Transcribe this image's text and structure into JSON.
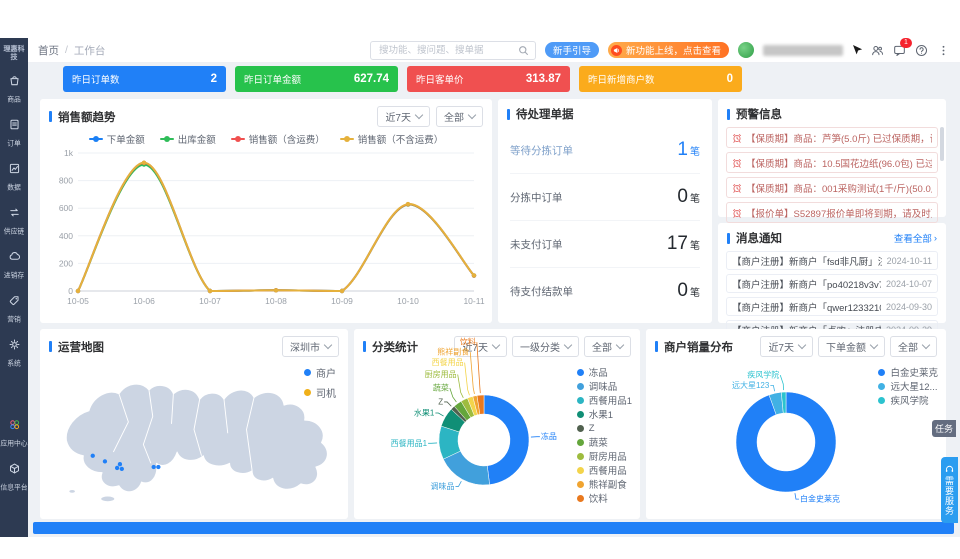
{
  "brand": {
    "logo_text": "理惠科技"
  },
  "sidebar": {
    "items": [
      {
        "icon": "goods-icon",
        "label": "商品"
      },
      {
        "icon": "orders-icon",
        "label": "订单"
      },
      {
        "icon": "data-icon",
        "label": "数据"
      },
      {
        "icon": "supply-chain-icon",
        "label": "供应链"
      },
      {
        "icon": "inventory-icon",
        "label": "进销存"
      },
      {
        "icon": "marketing-icon",
        "label": "营销"
      },
      {
        "icon": "system-icon",
        "label": "系统"
      }
    ],
    "bottom_items": [
      {
        "icon": "app-center-icon",
        "label": "应用中心"
      },
      {
        "icon": "info-platform-icon",
        "label": "信息平台"
      }
    ]
  },
  "header": {
    "breadcrumb": [
      "首页",
      "工作台"
    ],
    "search_placeholder": "搜功能、搜问题、搜单据",
    "guide_button": "新手引导",
    "promo_button": "新功能上线，点击查看",
    "message_badge": "1"
  },
  "stat_cards": [
    {
      "label": "昨日订单数",
      "value": "2",
      "color": "#2080f7"
    },
    {
      "label": "昨日订单金额",
      "value": "627.74",
      "color": "#27c24c"
    },
    {
      "label": "昨日客单价",
      "value": "313.87",
      "color": "#f05050"
    },
    {
      "label": "昨日新增商户数",
      "value": "0",
      "color": "#fbab1c"
    }
  ],
  "sales_trend": {
    "title": "销售额趋势",
    "filters": [
      "近7天",
      "全部"
    ],
    "chart_data": {
      "type": "line",
      "x": [
        "10-05",
        "10-06",
        "10-07",
        "10-08",
        "10-09",
        "10-10",
        "10-11"
      ],
      "series": [
        {
          "name": "下单金额",
          "color": "#1b80f5",
          "values": [
            0,
            928,
            0,
            5,
            0,
            628,
            112
          ]
        },
        {
          "name": "出库金额",
          "color": "#2fbd59",
          "values": [
            0,
            916,
            0,
            5,
            0,
            626,
            112
          ]
        },
        {
          "name": "销售额（含运费）",
          "color": "#f0504f",
          "values": [
            0,
            928,
            0,
            5,
            0,
            628,
            112
          ]
        },
        {
          "name": "销售额（不含运费）",
          "color": "#e5b13c",
          "values": [
            0,
            930,
            0,
            5,
            0,
            630,
            113
          ]
        }
      ],
      "ylim": [
        0,
        1000
      ],
      "yticks": [
        {
          "v": 0,
          "label": "0"
        },
        {
          "v": 200,
          "label": "200"
        },
        {
          "v": 400,
          "label": "400"
        },
        {
          "v": 600,
          "label": "600"
        },
        {
          "v": 800,
          "label": "800"
        },
        {
          "v": 1000,
          "label": "1k"
        }
      ]
    }
  },
  "pending": {
    "title": "待处理单据",
    "items": [
      {
        "label": "等待分拣订单",
        "value": "1",
        "unit": "笔",
        "highlight": true
      },
      {
        "label": "分拣中订单",
        "value": "0",
        "unit": "笔",
        "highlight": false
      },
      {
        "label": "未支付订单",
        "value": "17",
        "unit": "笔",
        "highlight": false
      },
      {
        "label": "待支付结款单",
        "value": "0",
        "unit": "笔",
        "highlight": false
      }
    ]
  },
  "alerts": {
    "title": "预警信息",
    "items": [
      "【保质期】商品：芦笋(5.0斤) 已过保质期，请及时处理! (批次号：T10...",
      "【保质期】商品：10.5国花边纸(96.0包) 已过保质期，请及时处理 (批...",
      "【保质期】商品：001采购测试(1千/斤)(50.0斤) 已过保质期，请及时处...",
      "【报价单】S52897报价单即将到期，请及时更新报价!"
    ]
  },
  "messages": {
    "title": "消息通知",
    "view_all": "查看全部",
    "items": [
      {
        "text": "【商户注册】新商户「fsd非凡厨」注册成功，请及时查看。",
        "date": "2024-10-11"
      },
      {
        "text": "【商户注册】新商户「po40218v3v70pr238kh」注册成功，请...",
        "date": "2024-10-07"
      },
      {
        "text": "【商户注册】新商户「qwer12332100」注册成功，请及时查...",
        "date": "2024-09-30"
      },
      {
        "text": "【商户注册】新商户「卢欢」注册成功，请及时查看。",
        "date": "2024-09-29"
      }
    ]
  },
  "ops_map": {
    "title": "运营地图",
    "region_filter": "深圳市",
    "legend": [
      {
        "label": "商户",
        "color": "#2080f7"
      },
      {
        "label": "司机",
        "color": "#f0b019"
      }
    ],
    "point_color": "#2080f7",
    "points": [
      {
        "x": 42,
        "y": 100
      },
      {
        "x": 55,
        "y": 106
      },
      {
        "x": 68,
        "y": 113
      },
      {
        "x": 71,
        "y": 109
      },
      {
        "x": 73,
        "y": 114
      },
      {
        "x": 107,
        "y": 112
      },
      {
        "x": 112,
        "y": 112
      }
    ]
  },
  "category_stats": {
    "title": "分类统计",
    "filters": [
      "近7天",
      "一级分类",
      "全部"
    ],
    "chart_data": {
      "type": "pie",
      "slices": [
        {
          "name": "冻品",
          "value": 48,
          "color": "#2080f7"
        },
        {
          "name": "调味品",
          "value": 20,
          "color": "#41a0dc"
        },
        {
          "name": "西餐用品1",
          "value": 12,
          "color": "#2cb5c3"
        },
        {
          "name": "水果1",
          "value": 7,
          "color": "#108f76"
        },
        {
          "name": "Z",
          "value": 1.5,
          "color": "#51614f"
        },
        {
          "name": "蔬菜",
          "value": 3,
          "color": "#64a63c"
        },
        {
          "name": "厨房用品",
          "value": 2.5,
          "color": "#9ebc3f"
        },
        {
          "name": "西餐用品",
          "value": 2,
          "color": "#f3d44b"
        },
        {
          "name": "熊祥副食",
          "value": 1.5,
          "color": "#f0a431"
        },
        {
          "name": "饮料",
          "value": 2.5,
          "color": "#e9791e"
        }
      ]
    }
  },
  "merchant_dist": {
    "title": "商户销量分布",
    "filters": [
      "近7天",
      "下单金额",
      "全部"
    ],
    "chart_data": {
      "type": "pie",
      "slices": [
        {
          "name": "白金史莱克",
          "legend": "白金史莱克",
          "value": 94.5,
          "color": "#2080f7"
        },
        {
          "name": "远大星123",
          "legend": "远大星12...",
          "value": 4,
          "color": "#41b1e4"
        },
        {
          "name": "疾风学院",
          "legend": "疾风学院",
          "value": 1.5,
          "color": "#2cc3cf"
        }
      ]
    }
  },
  "floating": {
    "task_tab": "任务",
    "service_button": "需要服务"
  }
}
